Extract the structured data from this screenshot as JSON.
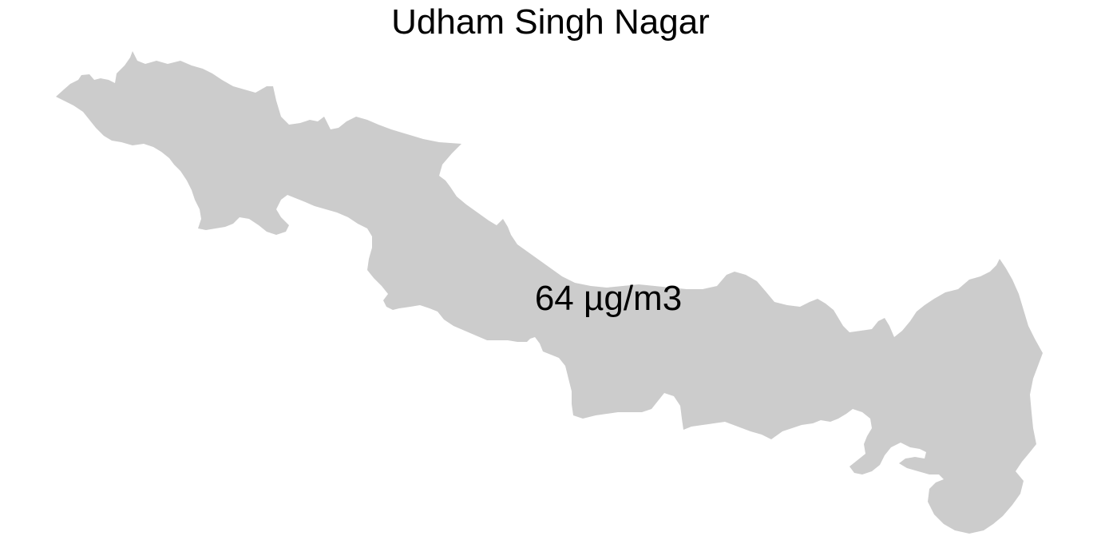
{
  "map": {
    "title": "Udham Singh Nagar",
    "region_fill": "#cccccc",
    "background": "#ffffff",
    "value_label": "64 µg/m3"
  }
}
